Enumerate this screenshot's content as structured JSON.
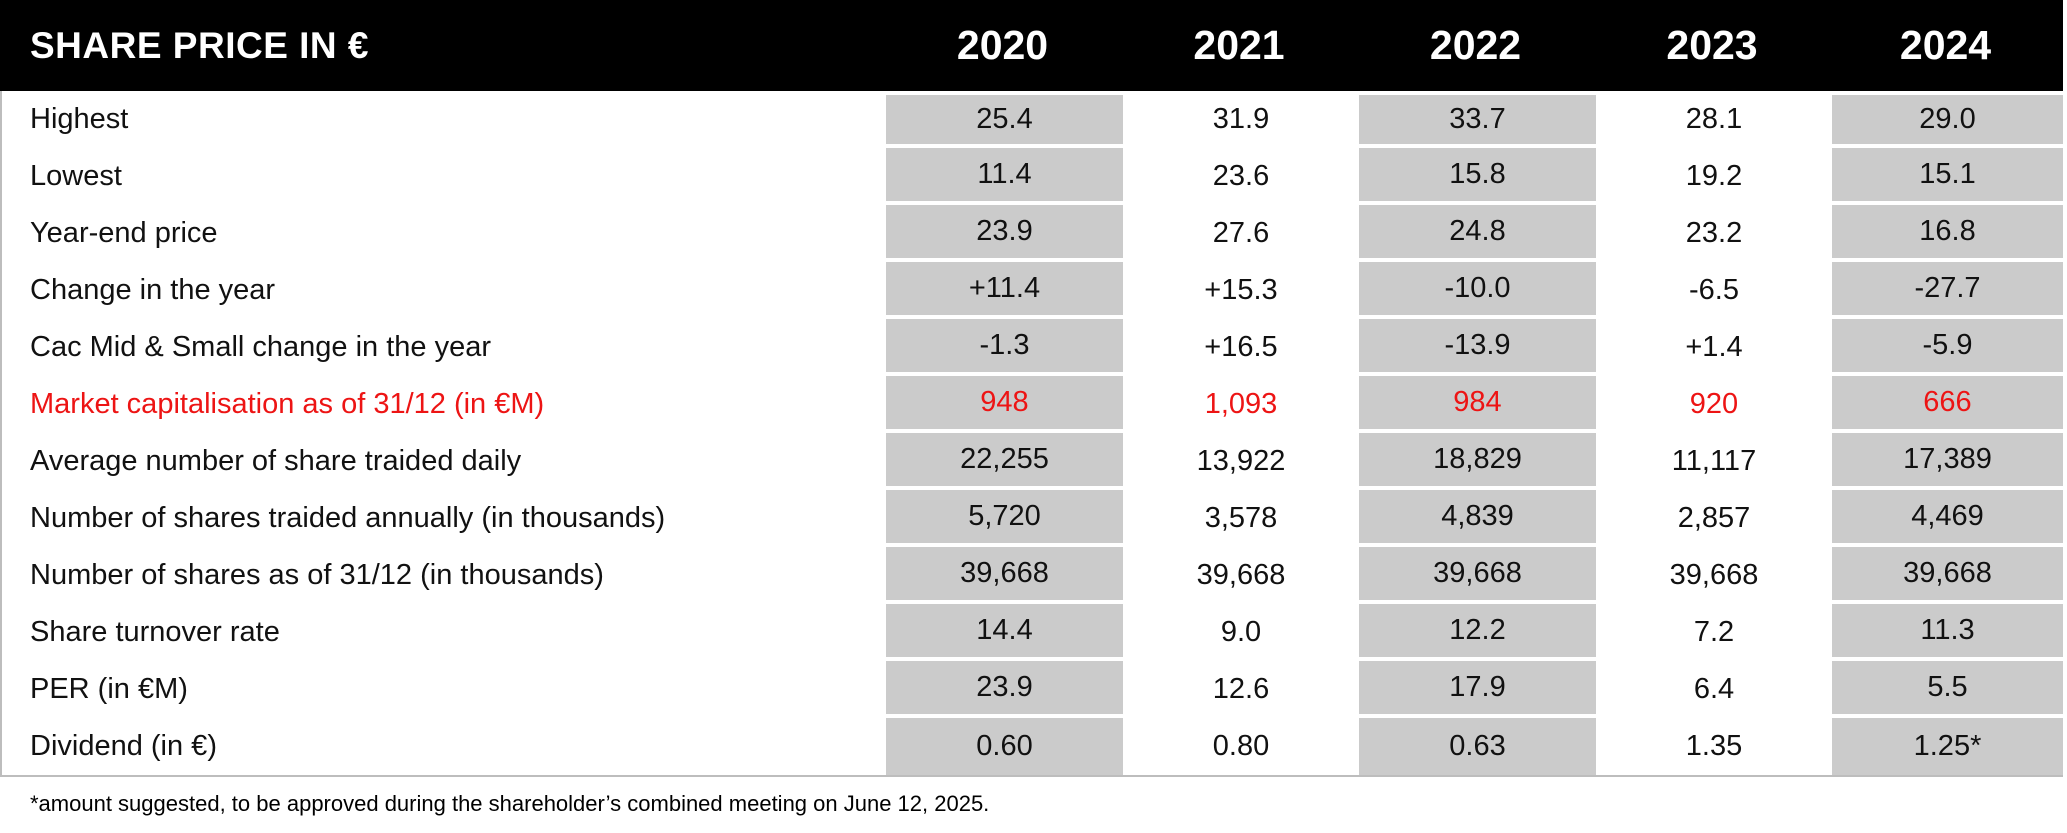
{
  "table": {
    "title": "SHARE PRICE IN €",
    "years": [
      "2020",
      "2021",
      "2022",
      "2023",
      "2024"
    ],
    "rows": [
      {
        "label": "Highest",
        "values": [
          "25.4",
          "31.9",
          "33.7",
          "28.1",
          "29.0"
        ]
      },
      {
        "label": "Lowest",
        "values": [
          "11.4",
          "23.6",
          "15.8",
          "19.2",
          "15.1"
        ]
      },
      {
        "label": "Year-end price",
        "values": [
          "23.9",
          "27.6",
          "24.8",
          "23.2",
          "16.8"
        ]
      },
      {
        "label": "Change in the year",
        "values": [
          "+11.4",
          "+15.3",
          "-10.0",
          "-6.5",
          "-27.7"
        ]
      },
      {
        "label": "Cac Mid & Small change in the year",
        "values": [
          "-1.3",
          "+16.5",
          "-13.9",
          "+1.4",
          "-5.9"
        ]
      },
      {
        "label": "Market capitalisation as of 31/12 (in €M)",
        "values": [
          "948",
          "1,093",
          "984",
          "920",
          "666"
        ],
        "highlight": "red"
      },
      {
        "label": "Average number of share traided daily",
        "values": [
          "22,255",
          "13,922",
          "18,829",
          "11,117",
          "17,389"
        ]
      },
      {
        "label": "Number of shares traided annually (in thousands)",
        "values": [
          "5,720",
          "3,578",
          "4,839",
          "2,857",
          "4,469"
        ]
      },
      {
        "label": "Number of shares as of 31/12 (in thousands)",
        "values": [
          "39,668",
          "39,668",
          "39,668",
          "39,668",
          "39,668"
        ]
      },
      {
        "label": "Share turnover rate",
        "values": [
          "14.4",
          "9.0",
          "12.2",
          "7.2",
          "11.3"
        ]
      },
      {
        "label": "PER (in €M)",
        "values": [
          "23.9",
          "12.6",
          "17.9",
          "6.4",
          "5.5"
        ]
      },
      {
        "label": "Dividend (in €)",
        "values": [
          "0.60",
          "0.80",
          "0.63",
          "1.35",
          "1.25*"
        ]
      }
    ],
    "footnote": "*amount suggested, to be approved during the shareholder’s combined meeting on June 12, 2025."
  },
  "colors": {
    "header_bg": "#000000",
    "header_text": "#ffffff",
    "shaded_cell": "#cbcbcb",
    "highlight_red": "#ed1414",
    "border_gray": "#bdbdbd"
  }
}
